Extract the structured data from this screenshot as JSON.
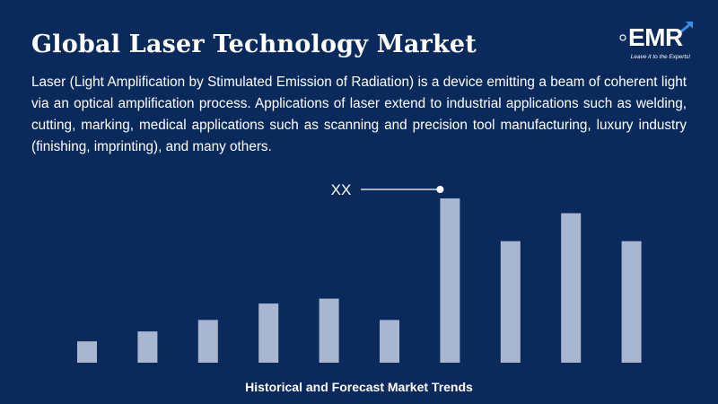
{
  "header": {
    "title": "Global Laser Technology Market",
    "description": "Laser (Light Amplification by Stimulated Emission of Radiation) is a device emitting a beam of coherent light via an optical amplification process. Applications of laser extend to industrial applications such as welding, cutting, marking, medical applications such as scanning and precision tool manufacturing, luxury industry (finishing, imprinting), and many others."
  },
  "logo": {
    "text": "EMR",
    "tagline": "Leave it to the Experts!"
  },
  "colors": {
    "background": "#0b2a5c",
    "bar": "#a9b6d0",
    "text": "#ffffff",
    "logo_arrow": "#3b8fe0"
  },
  "chart_data": {
    "type": "bar",
    "title": "",
    "caption": "Historical and Forecast Market Trends",
    "xlabel": "",
    "ylabel": "",
    "categories": [
      "",
      "",
      "",
      "",
      "",
      "",
      "",
      "",
      "",
      ""
    ],
    "values": [
      13,
      19,
      26,
      36,
      39,
      26,
      100,
      74,
      91,
      74
    ],
    "ylim": [
      0,
      100
    ],
    "grid": false,
    "annotation": {
      "label": "XX",
      "bar_index": 6
    }
  }
}
